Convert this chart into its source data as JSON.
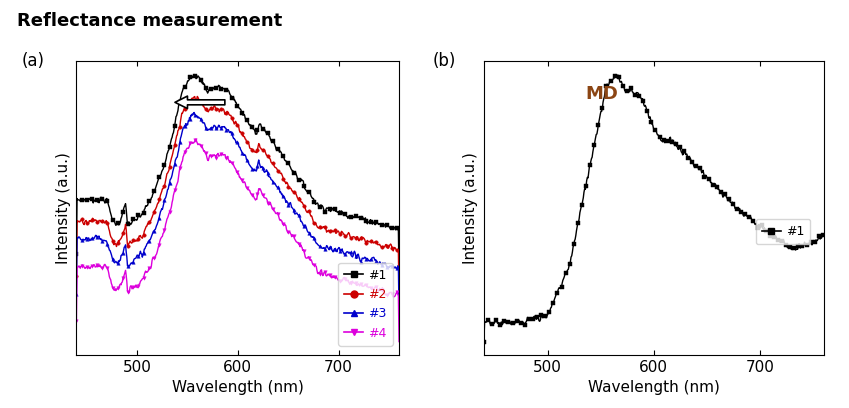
{
  "title": "Reflectance measurement",
  "title_fontsize": 13,
  "panel_a_label": "(a)",
  "panel_b_label": "(b)",
  "xlabel": "Wavelength (nm)",
  "ylabel": "Intensity (a.u.)",
  "xlim": [
    440,
    760
  ],
  "xticks": [
    500,
    600,
    700
  ],
  "colors": {
    "1": "#000000",
    "2": "#cc0000",
    "3": "#0000cc",
    "4": "#dd00dd"
  },
  "legend_labels": [
    "#1",
    "#2",
    "#3",
    "#4"
  ],
  "legend_markers": [
    "s",
    "o",
    "^",
    "v"
  ],
  "md_label": "MD",
  "md_label_color": "#8B4513",
  "b_legend_label": "#1",
  "background": "#ffffff"
}
